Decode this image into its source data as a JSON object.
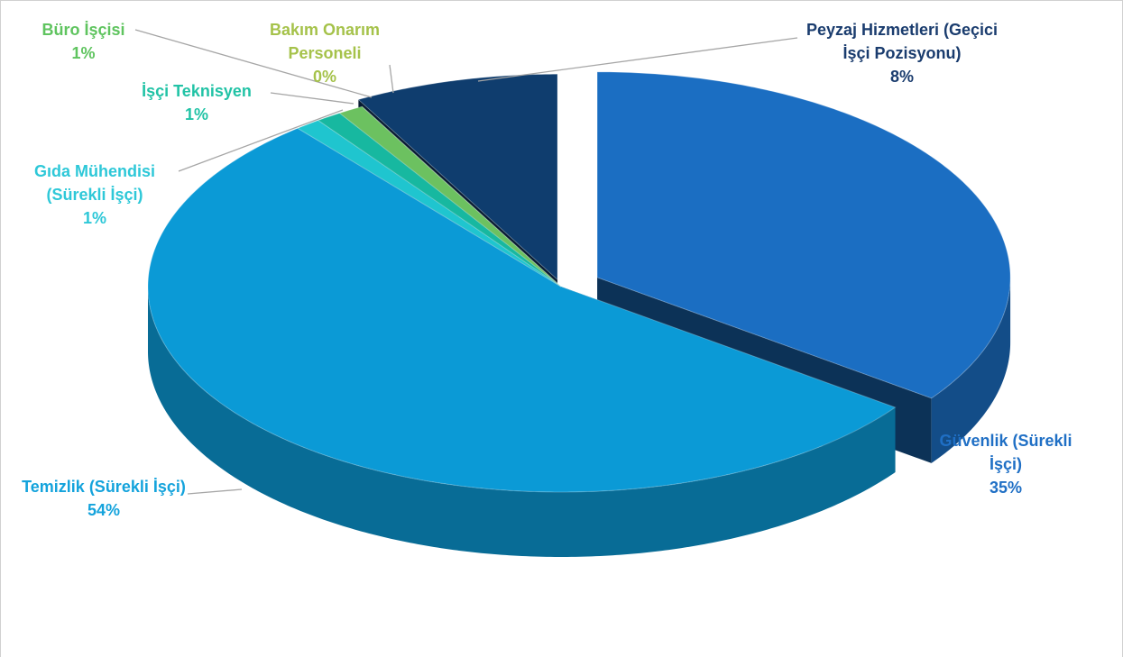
{
  "chart_data": {
    "type": "pie",
    "categories": [
      "Güvenlik (Sürekli İşçi)",
      "Temizlik (Sürekli İşçi)",
      "Gıda Mühendisi (Sürekli İşçi)",
      "İşçi Teknisyen",
      "Büro İşçisi",
      "Bakım Onarım Personeli",
      "Peyzaj Hizmetleri (Geçici İşçi Pozisyonu)"
    ],
    "values": [
      35,
      54,
      1,
      1,
      1,
      0,
      8
    ],
    "value_labels": [
      "35%",
      "54%",
      "1%",
      "1%",
      "1%",
      "0%",
      "8%"
    ],
    "colors": [
      "#1b6ec2",
      "#0b9ad6",
      "#1fc5cf",
      "#17b8a0",
      "#6cc160",
      "#b3c64a",
      "#0f3d6e"
    ]
  }
}
